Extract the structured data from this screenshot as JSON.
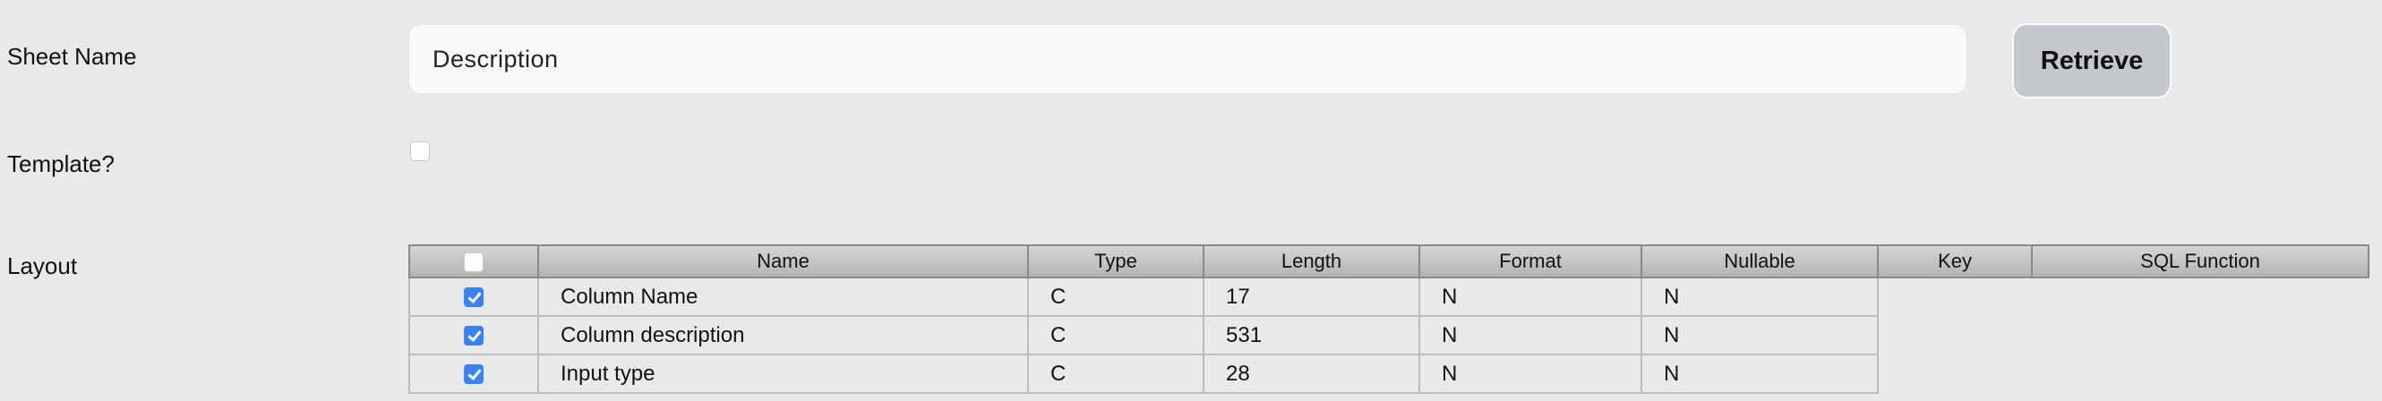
{
  "form": {
    "sheet_name_label": "Sheet Name",
    "sheet_name_value": "Description",
    "retrieve_label": "Retrieve",
    "template_label": "Template?",
    "template_checked": false,
    "layout_label": "Layout"
  },
  "layout_table": {
    "select_all_checked": false,
    "columns": [
      "Name",
      "Type",
      "Length",
      "Format",
      "Nullable",
      "Key",
      "SQL Function"
    ],
    "rows": [
      {
        "checked": true,
        "name": "Column Name",
        "type": "C",
        "length": "17",
        "format": "N",
        "nullable": "N"
      },
      {
        "checked": true,
        "name": "Column description",
        "type": "C",
        "length": "531",
        "format": "N",
        "nullable": "N"
      },
      {
        "checked": true,
        "name": "Input type",
        "type": "C",
        "length": "28",
        "format": "N",
        "nullable": "N"
      }
    ]
  },
  "colors": {
    "background": "#e9e9e9",
    "checkbox_accent": "#3b82f6",
    "button": "#c5c8cc"
  }
}
